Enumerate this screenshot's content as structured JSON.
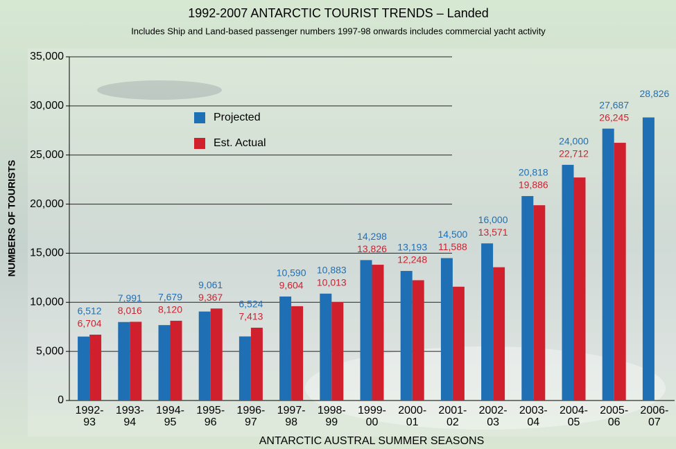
{
  "chart_data": {
    "type": "bar",
    "title": "1992-2007 ANTARCTIC  TOURIST TRENDS – Landed",
    "subtitle": "Includes Ship and Land-based passenger numbers 1997-98 onwards includes commercial yacht activity",
    "y_label": "NUMBERS OF TOURISTS",
    "x_label": "ANTARCTIC AUSTRAL SUMMER SEASONS",
    "categories": [
      "1992-\n93",
      "1993-\n94",
      "1994-\n95",
      "1995-\n96",
      "1996-\n97",
      "1997-\n98",
      "1998-\n99",
      "1999-\n00",
      "2000-\n01",
      "2001-\n02",
      "2002-\n03",
      "2003-\n04",
      "2004-\n05",
      "2005-\n06",
      "2006-\n07"
    ],
    "series": [
      {
        "name": "Projected",
        "color": "#1f6fb5",
        "values": [
          6512,
          7991,
          7679,
          9061,
          6524,
          10590,
          10883,
          14298,
          13193,
          14500,
          16000,
          20818,
          24000,
          27687,
          28826
        ],
        "value_labels": [
          "6,512",
          "7,991",
          "7,679",
          "9,061",
          "6,524",
          "10,590",
          "10,883",
          "14,298",
          "13,193",
          "14,500",
          "16,000",
          "20,818",
          "24,000",
          "27,687",
          "28,826"
        ]
      },
      {
        "name": "Est. Actual",
        "color": "#d0202e",
        "values": [
          6704,
          8016,
          8120,
          9367,
          7413,
          9604,
          10013,
          13826,
          12248,
          11588,
          13571,
          19886,
          22712,
          26245,
          null
        ],
        "value_labels": [
          "6,704",
          "8,016",
          "8,120",
          "9,367",
          "7,413",
          "9,604",
          "10,013",
          "13,826",
          "12,248",
          "11,588",
          "13,571",
          "19,886",
          "22,712",
          "26,245",
          null
        ]
      }
    ],
    "ylim": [
      0,
      35000
    ],
    "yticks": [
      0,
      {
        "value": 5000,
        "label": "5,000"
      },
      {
        "value": 10000,
        "label": "10,000"
      },
      {
        "value": 15000,
        "label": "15,000"
      },
      {
        "value": 20000,
        "label": "20,000"
      },
      {
        "value": 25000,
        "label": "25,000"
      },
      {
        "value": 30000,
        "label": "30,000"
      },
      {
        "value": 35000,
        "label": "35,000"
      }
    ],
    "grid": true
  }
}
